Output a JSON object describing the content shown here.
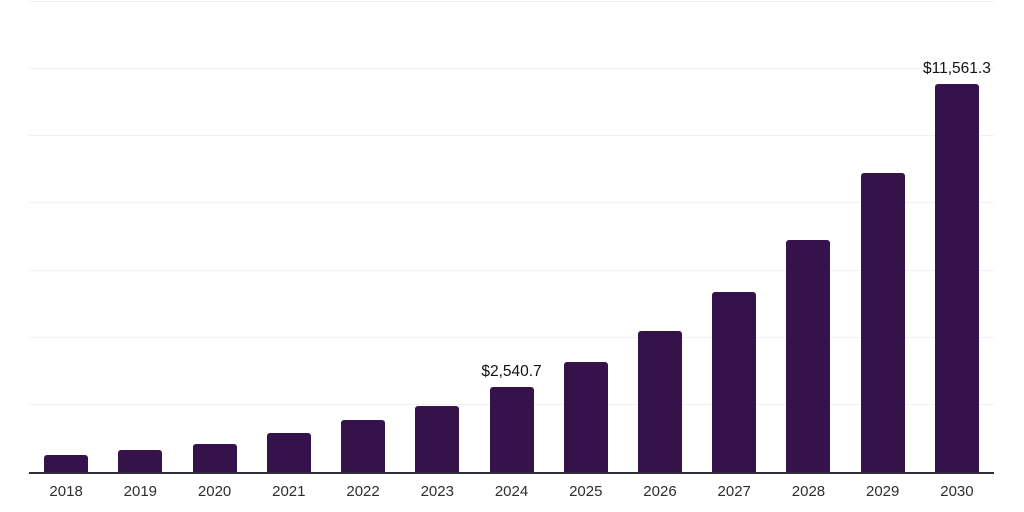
{
  "chart_data": {
    "type": "bar",
    "title": "",
    "xlabel": "",
    "ylabel": "",
    "categories": [
      "2018",
      "2019",
      "2020",
      "2021",
      "2022",
      "2023",
      "2024",
      "2025",
      "2026",
      "2027",
      "2028",
      "2029",
      "2030"
    ],
    "values": [
      520,
      650,
      850,
      1150,
      1540,
      1960,
      2540.7,
      3270,
      4190,
      5350,
      6920,
      8920,
      11561.3
    ],
    "data_labels": [
      {
        "category": "2024",
        "text": "$2,540.7"
      },
      {
        "category": "2030",
        "text": "$11,561.3"
      }
    ],
    "ylim": [
      0,
      14000
    ],
    "gridline_step": 2000,
    "grid": true,
    "legend_position": "none",
    "colors": {
      "bar": "#36124b",
      "axis_line": "#2e2e38",
      "gridline": "#f1f1f5",
      "tick_label": "#2e2e2e",
      "data_label": "#111111"
    }
  }
}
